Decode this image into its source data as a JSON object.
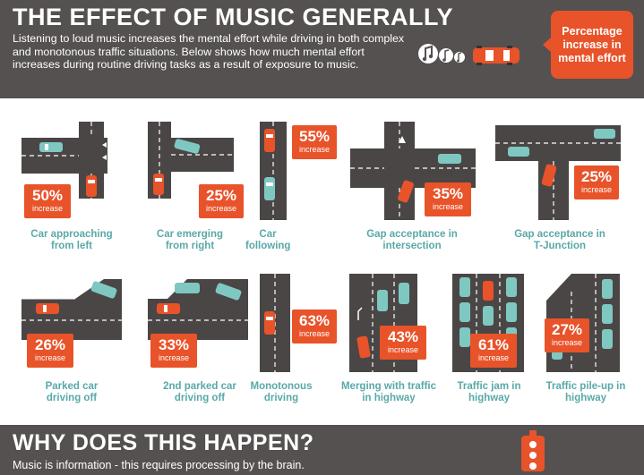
{
  "header": {
    "title": "THE EFFECT OF MUSIC GENERALLY",
    "intro": "Listening to loud music increases the mental effort while driving in both complex and monotonous traffic situations. Below shows how much mental effort increases during routine driving tasks as a result of exposure to music.",
    "legend_icons": [
      "music-note-icon",
      "music-note-icon",
      "music-note-icon",
      "car-icon"
    ],
    "legend_label": "Percentage increase in mental effort"
  },
  "colors": {
    "dark": "#555150",
    "accent": "#e8532a",
    "teal": "#5aa8a8",
    "road": "#4a4645",
    "car_teal": "#7fc8c2"
  },
  "badge_word": "increase",
  "situations": [
    {
      "percent": "50%",
      "label": "Car approaching from left"
    },
    {
      "percent": "25%",
      "label": "Car emerging from right"
    },
    {
      "percent": "55%",
      "label": "Car following"
    },
    {
      "percent": "35%",
      "label": "Gap acceptance in intersection"
    },
    {
      "percent": "25%",
      "label": "Gap acceptance in T-Junction"
    },
    {
      "percent": "26%",
      "label": "Parked car driving off"
    },
    {
      "percent": "33%",
      "label": "2nd parked car driving off"
    },
    {
      "percent": "63%",
      "label": "Monotonous driving"
    },
    {
      "percent": "43%",
      "label": "Merging with traffic in highway"
    },
    {
      "percent": "61%",
      "label": "Traffic jam in highway"
    },
    {
      "percent": "27%",
      "label": "Traffic pile-up in highway"
    }
  ],
  "footer": {
    "title": "WHY DOES THIS HAPPEN?",
    "text": "Music is information - this requires processing by the brain.",
    "icon": "traffic-light-icon"
  }
}
